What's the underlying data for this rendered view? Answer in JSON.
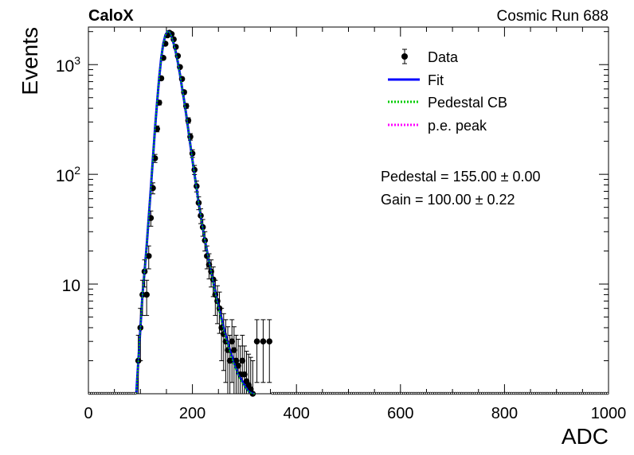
{
  "header": {
    "left": "CaloX",
    "right": "Cosmic Run 688"
  },
  "chart_data": {
    "type": "scatter",
    "title": "",
    "xlabel": "ADC",
    "ylabel": "Events",
    "xlim": [
      0,
      1000
    ],
    "ylim": [
      1,
      2200
    ],
    "yscale": "log",
    "x_ticks": [
      "0",
      "200",
      "400",
      "600",
      "800",
      "1000"
    ],
    "y_ticks": [
      {
        "value": 10,
        "base": "10",
        "exp": ""
      },
      {
        "value": 100,
        "base": "10",
        "exp": "2"
      },
      {
        "value": 1000,
        "base": "10",
        "exp": "3"
      }
    ],
    "grid": false,
    "legend_position": "top-right",
    "legend": [
      {
        "label": "Data",
        "style": "marker-errorbar",
        "color": "#000000"
      },
      {
        "label": "Fit",
        "style": "solid",
        "color": "#0000ff"
      },
      {
        "label": "Pedestal CB",
        "style": "dotted",
        "color": "#00cc00"
      },
      {
        "label": "p.e. peak",
        "style": "dotted",
        "color": "#ff00ff"
      }
    ],
    "annotations": [
      "Pedestal = 155.00 ± 0.00",
      "Gain = 100.00 ± 0.22"
    ],
    "series": [
      {
        "name": "Data",
        "x": [
          96,
          100,
          104,
          108,
          112,
          116,
          120,
          124,
          128,
          132,
          136,
          140,
          144,
          148,
          152,
          156,
          160,
          164,
          168,
          172,
          176,
          180,
          184,
          188,
          192,
          196,
          200,
          204,
          208,
          212,
          216,
          220,
          224,
          228,
          232,
          236,
          240,
          244,
          248,
          252,
          256,
          260,
          264,
          268,
          272,
          276,
          280,
          284,
          288,
          292,
          296,
          300,
          304,
          308,
          312,
          316,
          324,
          336,
          348
        ],
        "y": [
          2,
          4,
          8,
          13,
          8,
          18,
          40,
          75,
          140,
          260,
          450,
          750,
          1150,
          1550,
          1850,
          1950,
          1900,
          1700,
          1450,
          1200,
          950,
          740,
          560,
          420,
          310,
          220,
          155,
          110,
          78,
          55,
          42,
          33,
          25,
          18,
          15,
          13,
          11,
          8,
          7,
          6,
          4,
          3.5,
          3,
          2.5,
          2,
          3,
          2.5,
          2,
          1.8,
          1.5,
          2,
          1.5,
          1.3,
          1.2,
          1.1,
          1.0,
          3,
          3,
          3
        ],
        "color": "#000000"
      },
      {
        "name": "Fit",
        "x": [
          92,
          96,
          100,
          104,
          108,
          112,
          116,
          120,
          124,
          128,
          132,
          136,
          140,
          144,
          148,
          152,
          156,
          160,
          164,
          168,
          172,
          176,
          180,
          184,
          188,
          192,
          196,
          200,
          204,
          208,
          212,
          216,
          220,
          224,
          228,
          232,
          236,
          240,
          244,
          248,
          252,
          256,
          260,
          264,
          268,
          272,
          276,
          280,
          284,
          288,
          292,
          296,
          300,
          304,
          308,
          312,
          316,
          320
        ],
        "y": [
          1,
          2,
          4,
          8,
          13,
          22,
          40,
          75,
          140,
          260,
          450,
          750,
          1150,
          1550,
          1850,
          2000,
          1980,
          1800,
          1550,
          1300,
          1050,
          820,
          620,
          470,
          350,
          255,
          185,
          135,
          100,
          75,
          55,
          42,
          32,
          25,
          20,
          16,
          13,
          10.5,
          8.5,
          7,
          5.8,
          4.8,
          4.0,
          3.4,
          2.9,
          2.5,
          2.2,
          1.9,
          1.7,
          1.5,
          1.4,
          1.3,
          1.2,
          1.12,
          1.06,
          1.03,
          1.01,
          1.0
        ],
        "color": "#0000ff"
      },
      {
        "name": "Pedestal CB",
        "x": [
          92,
          96,
          100,
          104,
          108,
          112,
          116,
          120,
          124,
          128,
          132,
          136,
          140,
          144,
          148,
          152,
          156,
          160,
          164,
          168,
          172,
          176,
          180,
          184,
          188,
          192,
          196,
          200,
          204,
          208,
          212,
          216,
          220,
          224,
          228,
          232,
          236,
          240,
          244,
          248,
          252,
          256,
          260,
          264,
          268,
          272,
          276,
          280,
          284,
          288,
          292,
          296,
          300,
          304,
          308,
          312,
          316,
          320
        ],
        "y": [
          1,
          2,
          4,
          8,
          13,
          22,
          40,
          75,
          140,
          260,
          450,
          750,
          1150,
          1550,
          1850,
          2000,
          1980,
          1800,
          1550,
          1300,
          1050,
          820,
          620,
          470,
          350,
          255,
          185,
          135,
          100,
          75,
          55,
          42,
          32,
          25,
          20,
          16,
          13,
          10.2,
          8.2,
          6.7,
          5.5,
          4.6,
          3.8,
          3.2,
          2.8,
          2.4,
          2.1,
          1.85,
          1.65,
          1.48,
          1.35,
          1.25,
          1.17,
          1.1,
          1.05,
          1.02,
          1.0,
          1.0
        ],
        "color": "#00cc00"
      }
    ]
  }
}
